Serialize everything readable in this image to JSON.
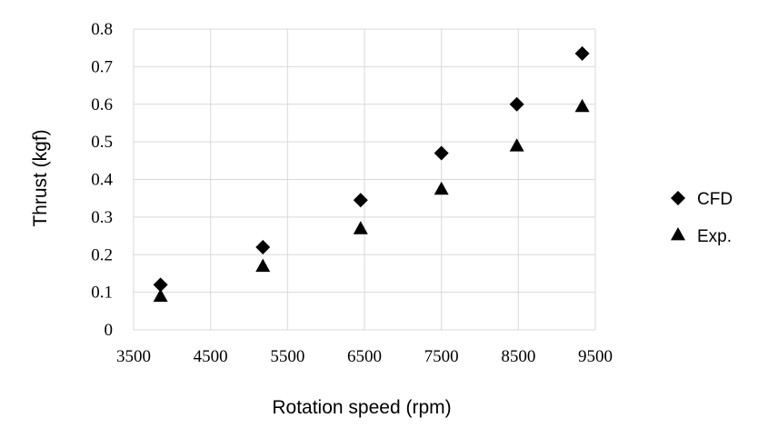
{
  "chart_data": {
    "type": "scatter",
    "title": "",
    "xlabel": "Rotation speed (rpm)",
    "ylabel": "Thrust (kgf)",
    "xlim": [
      3500,
      9500
    ],
    "ylim": [
      0,
      0.8
    ],
    "x_ticks": [
      "3500",
      "4500",
      "5500",
      "6500",
      "7500",
      "8500",
      "9500"
    ],
    "y_ticks": [
      "0",
      "0.1",
      "0.2",
      "0.3",
      "0.4",
      "0.5",
      "0.6",
      "0.7",
      "0.8"
    ],
    "grid": true,
    "legend_position": "right",
    "series": [
      {
        "name": "CFD",
        "marker": "diamond",
        "color": "#000000",
        "x": [
          3850,
          5180,
          6450,
          7500,
          8480,
          9330
        ],
        "y": [
          0.12,
          0.22,
          0.345,
          0.47,
          0.6,
          0.735
        ]
      },
      {
        "name": "Exp.",
        "marker": "triangle",
        "color": "#000000",
        "x": [
          3850,
          5180,
          6450,
          7500,
          8480,
          9330
        ],
        "y": [
          0.09,
          0.17,
          0.27,
          0.375,
          0.49,
          0.595
        ]
      }
    ]
  }
}
